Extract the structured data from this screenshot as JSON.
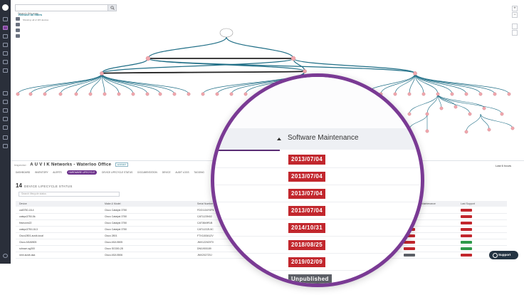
{
  "search": {
    "placeholder": "Search this map"
  },
  "filters": {
    "remove_label": "Remove all filters",
    "showing": "Showing: all of 115 devices"
  },
  "zoom": {
    "in": "+",
    "out": "−"
  },
  "network": {
    "label": "Inspector:",
    "name": "A U V I K Networks - Waterloo Office",
    "tag": "EXPORT",
    "last_n": "Last 6 hours"
  },
  "tabs": [
    "DASHBOARD",
    "INVENTORY",
    "ALERTS",
    "HARDWARE LIFECYCLE",
    "DEVICE LIFECYCLE STATUS",
    "DOCUMENTATION",
    "DEVICE",
    "AUDIT LOGS",
    "TAGGING"
  ],
  "lifecycle": {
    "count": "14",
    "title": "DEVICE LIFECYCLE STATUS",
    "search_placeholder": "Search lifecycle status",
    "columns": {
      "device": "Device",
      "make_model": "Make & Model",
      "serial": "Serial Number",
      "software_maintenance": "Software Maintenance",
      "last_support": "Last Support"
    },
    "rows": [
      {
        "device": "cat3750-18-4",
        "model": "Cisco Catalyst 3750",
        "serial": "FDO1134Y0P4"
      },
      {
        "device": "catsys3750-5k",
        "model": "Cisco Catalyst 3750",
        "serial": "CAT1123N02"
      },
      {
        "device": "firstrunm22",
        "model": "Cisco Catalyst 3750",
        "serial": "CAT0849R1B"
      },
      {
        "device": "catsys3750-18-3",
        "model": "Cisco Catalyst 3750",
        "serial": "CAT1122ZL5C"
      },
      {
        "device": "Cisco2801.auvik.local",
        "model": "Cisco 2801",
        "serial": "FTX1153A12V"
      },
      {
        "device": "Cisco ASA5505",
        "model": "Cisco ASA 5505",
        "serial": "JMX1220Z0T0"
      },
      {
        "device": "sdrown-sg300",
        "model": "Cisco SG300-28",
        "serial": "DNI1900189"
      },
      {
        "device": "next.auvik.asa",
        "model": "Cisco ASA 5506",
        "serial": "JMX2027Z0J"
      }
    ]
  },
  "magnifier": {
    "header": "Software Maintenance",
    "dates": [
      "2013/07/04",
      "2013/07/04",
      "2013/07/04",
      "2013/07/04",
      "2014/10/31",
      "2018/08/25",
      "2019/02/09",
      "Unpublished"
    ]
  },
  "support_label": "Support",
  "colors": {
    "accent": "#7a3a94",
    "alert": "#c2272d",
    "link": "#1f6e86",
    "node": "#f1a7ad"
  }
}
